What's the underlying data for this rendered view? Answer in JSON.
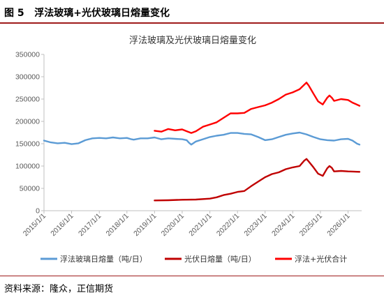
{
  "figure": {
    "label": "图 5",
    "heading": "浮法玻璃+光伏玻璃日熔量变化",
    "source": "资料来源：隆众，正信期货"
  },
  "chart_data": {
    "type": "line",
    "title": "浮法玻璃及光伏玻璃日熔量变化",
    "xlabel": "",
    "ylabel": "",
    "ylim": [
      0,
      350000
    ],
    "yticks": [
      0,
      50000,
      100000,
      150000,
      200000,
      250000,
      300000,
      350000
    ],
    "ytick_labels": [
      "0",
      "50000",
      "100000",
      "150000",
      "200000",
      "250000",
      "300000",
      "350000"
    ],
    "xlim": [
      "2015-01-01",
      "2026-06-30"
    ],
    "xticks": [
      "2015-01-01",
      "2016-01-01",
      "2017-01-01",
      "2018-01-01",
      "2019-01-01",
      "2020-01-01",
      "2021-01-01",
      "2022-01-01",
      "2023-01-01",
      "2024-01-01",
      "2025-01-01",
      "2026-01-01"
    ],
    "xtick_labels": [
      "2015/1/1",
      "2016/1/1",
      "2017/1/1",
      "2018/1/1",
      "2019/1/1",
      "2020/1/1",
      "2021/1/1",
      "2022/1/1",
      "2023/1/1",
      "2024/1/1",
      "2025/1/1",
      "2026/1/1"
    ],
    "grid": false,
    "legend": "bottom",
    "series": [
      {
        "name": "浮法玻璃日熔量（吨/日）",
        "color": "#5b9bd5",
        "points": [
          [
            "2015-01-01",
            157000
          ],
          [
            "2015-04-01",
            153000
          ],
          [
            "2015-07-01",
            151000
          ],
          [
            "2015-10-01",
            152000
          ],
          [
            "2016-01-01",
            149000
          ],
          [
            "2016-04-01",
            151000
          ],
          [
            "2016-07-01",
            158000
          ],
          [
            "2016-10-01",
            162000
          ],
          [
            "2017-01-01",
            163000
          ],
          [
            "2017-04-01",
            162000
          ],
          [
            "2017-07-01",
            164000
          ],
          [
            "2017-10-01",
            162000
          ],
          [
            "2018-01-01",
            163000
          ],
          [
            "2018-03-01",
            160000
          ],
          [
            "2018-04-01",
            159000
          ],
          [
            "2018-07-01",
            162000
          ],
          [
            "2018-10-01",
            162000
          ],
          [
            "2019-01-01",
            164000
          ],
          [
            "2019-04-01",
            160000
          ],
          [
            "2019-07-01",
            162000
          ],
          [
            "2019-10-01",
            161000
          ],
          [
            "2020-01-01",
            160000
          ],
          [
            "2020-03-01",
            158000
          ],
          [
            "2020-04-01",
            152000
          ],
          [
            "2020-05-01",
            148000
          ],
          [
            "2020-07-01",
            155000
          ],
          [
            "2020-10-01",
            160000
          ],
          [
            "2021-01-01",
            165000
          ],
          [
            "2021-04-01",
            168000
          ],
          [
            "2021-07-01",
            170000
          ],
          [
            "2021-10-01",
            174000
          ],
          [
            "2022-01-01",
            174000
          ],
          [
            "2022-04-01",
            172000
          ],
          [
            "2022-07-01",
            171000
          ],
          [
            "2022-10-01",
            165000
          ],
          [
            "2023-01-01",
            158000
          ],
          [
            "2023-04-01",
            160000
          ],
          [
            "2023-07-01",
            165000
          ],
          [
            "2023-10-01",
            170000
          ],
          [
            "2024-01-01",
            173000
          ],
          [
            "2024-04-01",
            175000
          ],
          [
            "2024-07-01",
            171000
          ],
          [
            "2024-10-01",
            165000
          ],
          [
            "2025-01-01",
            160000
          ],
          [
            "2025-04-01",
            158000
          ],
          [
            "2025-07-01",
            157000
          ],
          [
            "2025-10-01",
            160000
          ],
          [
            "2026-01-01",
            161000
          ],
          [
            "2026-03-01",
            157000
          ],
          [
            "2026-05-01",
            150000
          ],
          [
            "2026-06-01",
            148000
          ]
        ]
      },
      {
        "name": "光伏日熔量（吨/日）",
        "color": "#c00000",
        "points": [
          [
            "2019-01-01",
            23000
          ],
          [
            "2019-07-01",
            23500
          ],
          [
            "2020-01-01",
            24500
          ],
          [
            "2020-07-01",
            25000
          ],
          [
            "2021-01-01",
            27000
          ],
          [
            "2021-04-01",
            30000
          ],
          [
            "2021-07-01",
            35000
          ],
          [
            "2021-10-01",
            38000
          ],
          [
            "2022-01-01",
            42000
          ],
          [
            "2022-04-01",
            44000
          ],
          [
            "2022-07-01",
            55000
          ],
          [
            "2022-10-01",
            65000
          ],
          [
            "2023-01-01",
            75000
          ],
          [
            "2023-04-01",
            82000
          ],
          [
            "2023-07-01",
            86000
          ],
          [
            "2023-10-01",
            93000
          ],
          [
            "2024-01-01",
            97000
          ],
          [
            "2024-04-01",
            100000
          ],
          [
            "2024-06-01",
            112000
          ],
          [
            "2024-07-01",
            116000
          ],
          [
            "2024-08-01",
            110000
          ],
          [
            "2024-10-01",
            97000
          ],
          [
            "2024-12-01",
            83000
          ],
          [
            "2025-02-01",
            78000
          ],
          [
            "2025-04-01",
            95000
          ],
          [
            "2025-05-01",
            100000
          ],
          [
            "2025-06-01",
            96000
          ],
          [
            "2025-07-01",
            88000
          ],
          [
            "2025-10-01",
            89000
          ],
          [
            "2026-01-01",
            88000
          ],
          [
            "2026-06-01",
            87000
          ]
        ]
      },
      {
        "name": "浮法+光伏合计",
        "color": "#ff0000",
        "points": [
          [
            "2019-01-01",
            179000
          ],
          [
            "2019-04-01",
            177000
          ],
          [
            "2019-07-01",
            183000
          ],
          [
            "2019-10-01",
            180000
          ],
          [
            "2020-01-01",
            182000
          ],
          [
            "2020-03-01",
            178000
          ],
          [
            "2020-05-01",
            174000
          ],
          [
            "2020-07-01",
            178000
          ],
          [
            "2020-10-01",
            188000
          ],
          [
            "2021-01-01",
            193000
          ],
          [
            "2021-04-01",
            198000
          ],
          [
            "2021-07-01",
            208000
          ],
          [
            "2021-10-01",
            218000
          ],
          [
            "2022-01-01",
            218000
          ],
          [
            "2022-04-01",
            219000
          ],
          [
            "2022-07-01",
            228000
          ],
          [
            "2022-10-01",
            232000
          ],
          [
            "2023-01-01",
            236000
          ],
          [
            "2023-04-01",
            242000
          ],
          [
            "2023-07-01",
            250000
          ],
          [
            "2023-10-01",
            260000
          ],
          [
            "2024-01-01",
            265000
          ],
          [
            "2024-04-01",
            272000
          ],
          [
            "2024-06-01",
            282000
          ],
          [
            "2024-07-01",
            287000
          ],
          [
            "2024-08-01",
            280000
          ],
          [
            "2024-10-01",
            262000
          ],
          [
            "2024-12-01",
            245000
          ],
          [
            "2025-02-01",
            238000
          ],
          [
            "2025-04-01",
            253000
          ],
          [
            "2025-05-01",
            258000
          ],
          [
            "2025-06-01",
            253000
          ],
          [
            "2025-07-01",
            246000
          ],
          [
            "2025-10-01",
            250000
          ],
          [
            "2026-01-01",
            248000
          ],
          [
            "2026-03-01",
            242000
          ],
          [
            "2026-06-01",
            235000
          ]
        ]
      }
    ]
  }
}
